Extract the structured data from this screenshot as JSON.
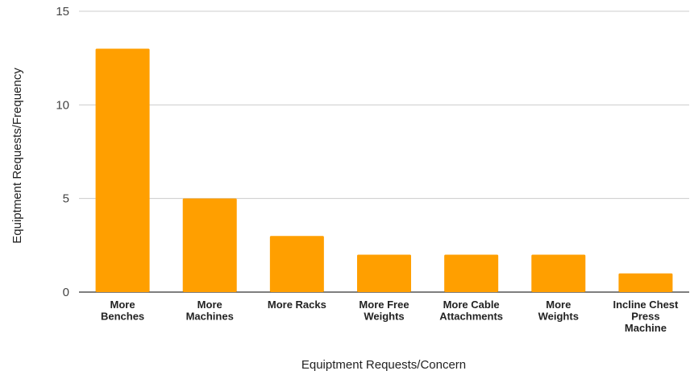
{
  "chart_data": {
    "type": "bar",
    "title": "",
    "xlabel": "Equiptment Requests/Concern",
    "ylabel": "Equiptment Requests/Frequency",
    "categories": [
      [
        "More",
        "Benches"
      ],
      [
        "More",
        "Machines"
      ],
      [
        "More Racks"
      ],
      [
        "More Free",
        "Weights"
      ],
      [
        "More Cable",
        "Attachments"
      ],
      [
        "More",
        "Weights"
      ],
      [
        "Incline Chest",
        "Press",
        "Machine"
      ]
    ],
    "values": [
      13,
      5,
      3,
      2,
      2,
      2,
      1
    ],
    "ylim": [
      0,
      15
    ],
    "yticks": [
      0,
      5,
      10,
      15
    ],
    "grid": true,
    "legend": "none",
    "colors": {
      "bar": "#FF9F00",
      "gridline": "#cccccc",
      "baseline": "#333333"
    }
  }
}
